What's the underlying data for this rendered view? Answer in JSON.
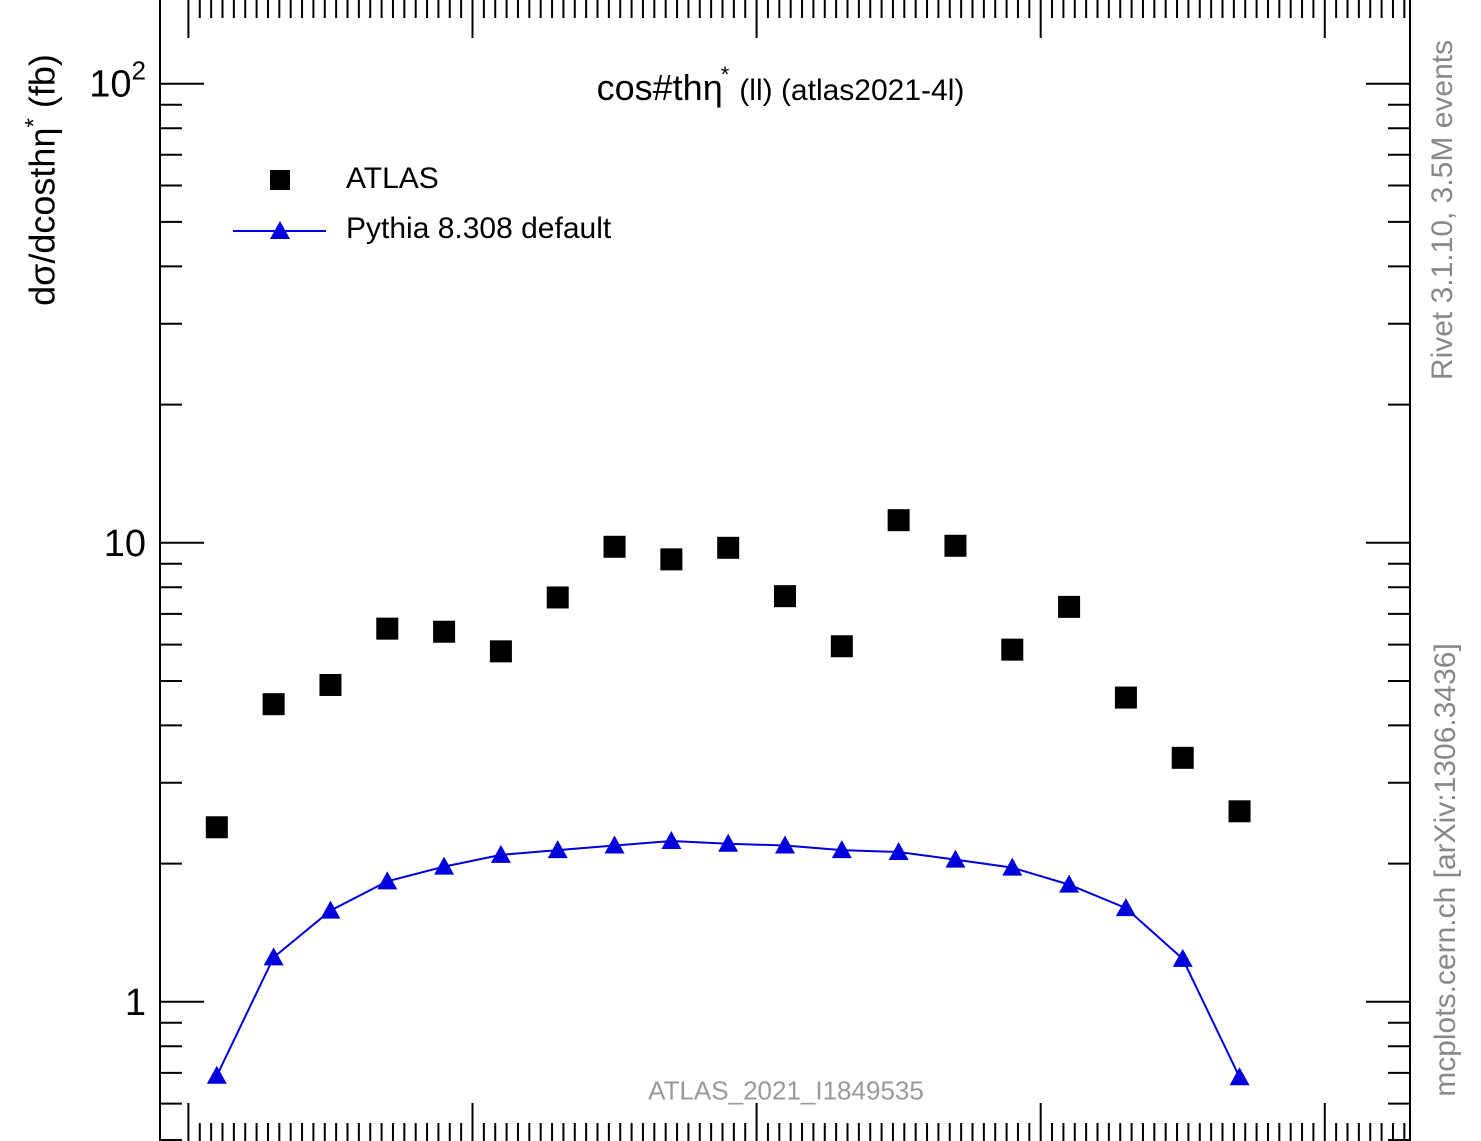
{
  "chart_data": {
    "type": "scatter",
    "title_main": "cos#thη",
    "title_sup": "*",
    "title_rest": "(ll) (atlas2021-4l)",
    "ylabel_main": "dσ/dcosthη",
    "ylabel_sup": "*",
    "ylabel_unit": " (fb)",
    "yscale": "log",
    "ylim": [
      0.45,
      160
    ],
    "xlim": [
      -1.05,
      1.15
    ],
    "ytick_labels": [
      {
        "value": 1,
        "label": "1"
      },
      {
        "value": 10,
        "label": "10"
      },
      {
        "value": 100,
        "label": "10",
        "sup": "2"
      }
    ],
    "x": [
      -0.95,
      -0.85,
      -0.75,
      -0.65,
      -0.55,
      -0.45,
      -0.35,
      -0.25,
      -0.15,
      -0.05,
      0.05,
      0.15,
      0.25,
      0.35,
      0.45,
      0.55,
      0.65,
      0.75,
      0.85
    ],
    "series": [
      {
        "name": "ATLAS",
        "marker": "square",
        "color": "#000000",
        "values": [
          2.4,
          4.45,
          4.9,
          6.5,
          6.4,
          5.8,
          7.6,
          9.8,
          9.2,
          9.75,
          7.65,
          5.95,
          11.2,
          9.85,
          5.85,
          7.25,
          4.6,
          3.4,
          2.6
        ]
      },
      {
        "name": "Pythia 8.308 default",
        "marker": "triangle",
        "line": true,
        "color": "#0000dd",
        "values": [
          0.69,
          1.25,
          1.58,
          1.83,
          1.97,
          2.09,
          2.14,
          2.19,
          2.24,
          2.21,
          2.19,
          2.14,
          2.12,
          2.04,
          1.96,
          1.8,
          1.6,
          1.24,
          0.685
        ]
      }
    ],
    "side_label_rivet": "Rivet 3.1.10,  3.5M events",
    "side_label_mcplots": "mcplots.cern.ch [arXiv:1306.3436]",
    "watermark": "ATLAS_2021_I1849535"
  }
}
